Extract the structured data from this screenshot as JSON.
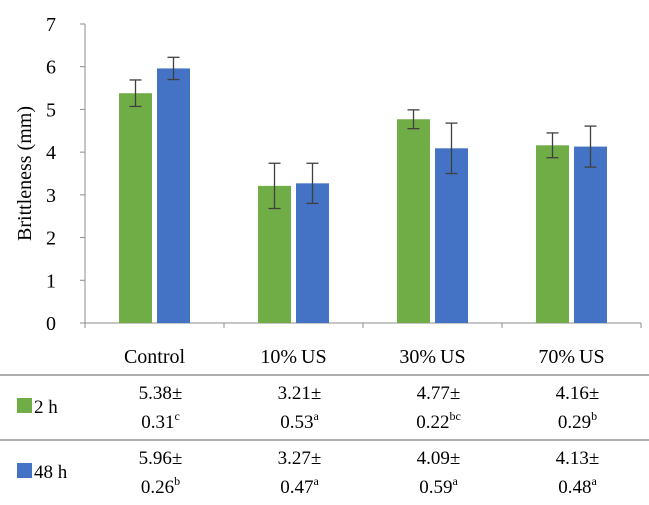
{
  "chart_data": {
    "type": "bar",
    "ylabel": "Brittleness (mm)",
    "ylim": [
      0,
      7
    ],
    "yticks": [
      0,
      1,
      2,
      3,
      4,
      5,
      6,
      7
    ],
    "grid": false,
    "categories": [
      "Control",
      "10% US",
      "30% US",
      "70% US"
    ],
    "series": [
      {
        "name": "2 h",
        "color": "#70ad47",
        "values": [
          5.38,
          3.21,
          4.77,
          4.16
        ],
        "errors": [
          0.31,
          0.53,
          0.22,
          0.29
        ],
        "table": [
          {
            "value": "5.38±",
            "sd": "0.31",
            "letter": "c"
          },
          {
            "value": "3.21±",
            "sd": "0.53",
            "letter": "a"
          },
          {
            "value": "4.77±",
            "sd": "0.22",
            "letter": "bc"
          },
          {
            "value": "4.16±",
            "sd": "0.29",
            "letter": "b"
          }
        ]
      },
      {
        "name": "48 h",
        "color": "#4472c4",
        "values": [
          5.96,
          3.27,
          4.09,
          4.13
        ],
        "errors": [
          0.26,
          0.47,
          0.59,
          0.48
        ],
        "table": [
          {
            "value": "5.96±",
            "sd": "0.26",
            "letter": "b"
          },
          {
            "value": "3.27±",
            "sd": "0.47",
            "letter": "a"
          },
          {
            "value": "4.09±",
            "sd": "0.59",
            "letter": "a"
          },
          {
            "value": "4.13±",
            "sd": "0.48",
            "letter": "a"
          }
        ]
      }
    ]
  }
}
